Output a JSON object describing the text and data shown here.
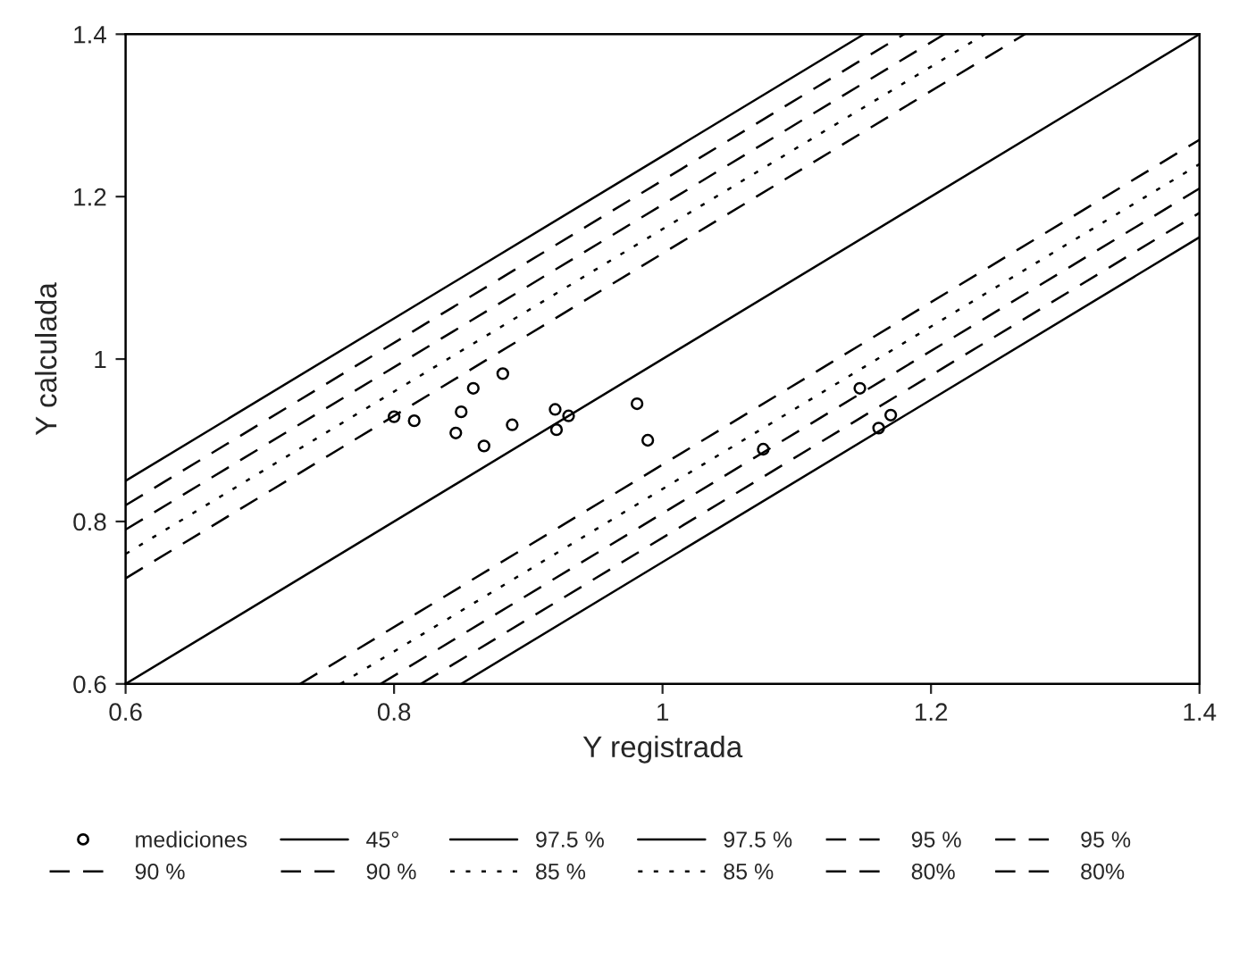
{
  "chart_data": {
    "type": "scatter",
    "xlabel": "Y registrada",
    "ylabel": "Y calculada",
    "xlim": [
      0.6,
      1.4
    ],
    "ylim": [
      0.6,
      1.4
    ],
    "xticks": [
      0.6,
      0.8,
      1,
      1.2,
      1.4
    ],
    "yticks": [
      0.6,
      0.8,
      1,
      1.2,
      1.4
    ],
    "grid": false,
    "legend": "bottom",
    "series": [
      {
        "name": "mediciones",
        "marker": "circle",
        "color": "#000000",
        "x": [
          0.8,
          0.815,
          0.846,
          0.85,
          0.859,
          0.867,
          0.881,
          0.888,
          0.92,
          0.93,
          0.921,
          0.981,
          0.989,
          1.075,
          1.147,
          1.161,
          1.17
        ],
        "values": [
          0.929,
          0.924,
          0.909,
          0.935,
          0.964,
          0.893,
          0.982,
          0.919,
          0.938,
          0.93,
          0.913,
          0.945,
          0.9,
          0.889,
          0.964,
          0.915,
          0.931
        ]
      },
      {
        "name": "45°",
        "type": "line",
        "line_style": "solid",
        "color": "#000000",
        "x": [
          0.6,
          1.4
        ],
        "values": [
          0.6,
          1.4
        ]
      },
      {
        "name": "97.5 %",
        "type": "line",
        "line_style": "solid",
        "color": "#000000",
        "x": [
          0.6,
          1.15
        ],
        "values": [
          0.85,
          1.4
        ]
      },
      {
        "name": "97.5 %",
        "type": "line",
        "line_style": "solid",
        "color": "#000000",
        "x": [
          0.85,
          1.4
        ],
        "values": [
          0.6,
          1.15
        ]
      },
      {
        "name": "95 %",
        "type": "line",
        "line_style": "dashed",
        "color": "#000000",
        "x": [
          0.6,
          1.18
        ],
        "values": [
          0.82,
          1.4
        ]
      },
      {
        "name": "95 %",
        "type": "line",
        "line_style": "dashed",
        "color": "#000000",
        "x": [
          0.82,
          1.4
        ],
        "values": [
          0.6,
          1.18
        ]
      },
      {
        "name": "90 %",
        "type": "line",
        "line_style": "dashed",
        "color": "#000000",
        "x": [
          0.6,
          1.21
        ],
        "values": [
          0.79,
          1.4
        ]
      },
      {
        "name": "90 %",
        "type": "line",
        "line_style": "dashed",
        "color": "#000000",
        "x": [
          0.79,
          1.4
        ],
        "values": [
          0.6,
          1.21
        ]
      },
      {
        "name": "85 %",
        "type": "line",
        "line_style": "dotted",
        "color": "#000000",
        "x": [
          0.6,
          1.24
        ],
        "values": [
          0.76,
          1.4
        ]
      },
      {
        "name": "85 %",
        "type": "line",
        "line_style": "dotted",
        "color": "#000000",
        "x": [
          0.76,
          1.4
        ],
        "values": [
          0.6,
          1.24
        ]
      },
      {
        "name": "80%",
        "type": "line",
        "line_style": "dashed",
        "color": "#000000",
        "x": [
          0.6,
          1.27
        ],
        "values": [
          0.73,
          1.4
        ]
      },
      {
        "name": "80%",
        "type": "line",
        "line_style": "dashed",
        "color": "#000000",
        "x": [
          0.73,
          1.4
        ],
        "values": [
          0.6,
          1.27
        ]
      }
    ]
  }
}
